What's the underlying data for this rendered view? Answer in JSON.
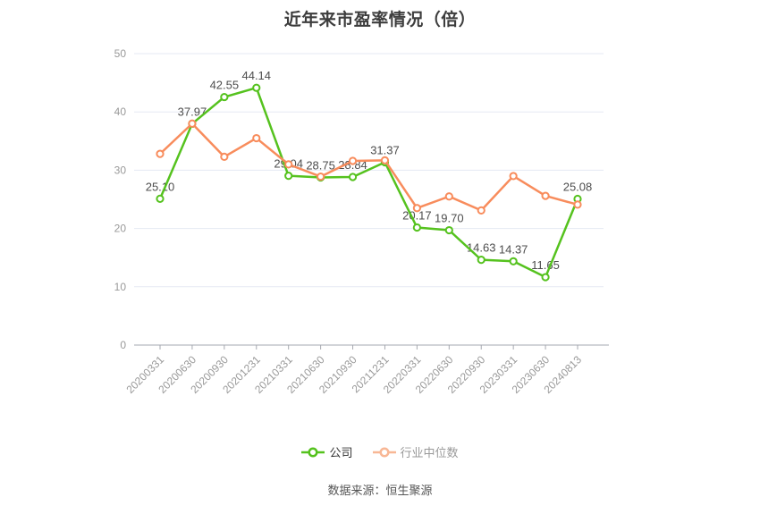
{
  "title": "近年来市盈率情况（倍）",
  "source_note": "数据来源：恒生聚源",
  "legend": {
    "items": [
      {
        "label": "公司"
      },
      {
        "label": "行业中位数"
      }
    ]
  },
  "colors": {
    "company": "#55c21e",
    "industry": "#f88c5c",
    "industry_legend_marker": "#f8b795",
    "grid": "#e5e9f3",
    "axis": "#a6a9b0",
    "axis_label": "#999999",
    "value_label": "#4d4d4d"
  },
  "chart_data": {
    "type": "line",
    "title": "近年来市盈率情况（倍）",
    "xlabel": "",
    "ylabel": "",
    "ylim": [
      0,
      50
    ],
    "y_ticks": [
      0,
      10,
      20,
      30,
      40,
      50
    ],
    "grid": true,
    "legend_position": "bottom",
    "categories": [
      "20200331",
      "20200630",
      "20200930",
      "20201231",
      "20210331",
      "20210630",
      "20210930",
      "20211231",
      "20220331",
      "20220630",
      "20220930",
      "20230331",
      "20230630",
      "20240813"
    ],
    "series": [
      {
        "name": "公司",
        "color_key": "company",
        "values": [
          25.1,
          37.97,
          42.55,
          44.14,
          29.04,
          28.75,
          28.84,
          31.37,
          20.17,
          19.7,
          14.63,
          14.37,
          11.65,
          25.08
        ],
        "labels": [
          "25.10",
          "37.97",
          "42.55",
          "44.14",
          "29.04",
          "28.75",
          "28.84",
          "31.37",
          "20.17",
          "19.70",
          "14.63",
          "14.37",
          "11.65",
          "25.08"
        ],
        "show_labels": true
      },
      {
        "name": "行业中位数",
        "color_key": "industry",
        "values": [
          32.8,
          38.0,
          32.3,
          35.5,
          31.0,
          28.9,
          31.6,
          31.7,
          23.5,
          25.5,
          23.1,
          29.0,
          25.6,
          24.1
        ],
        "labels": [],
        "show_labels": false
      }
    ]
  }
}
